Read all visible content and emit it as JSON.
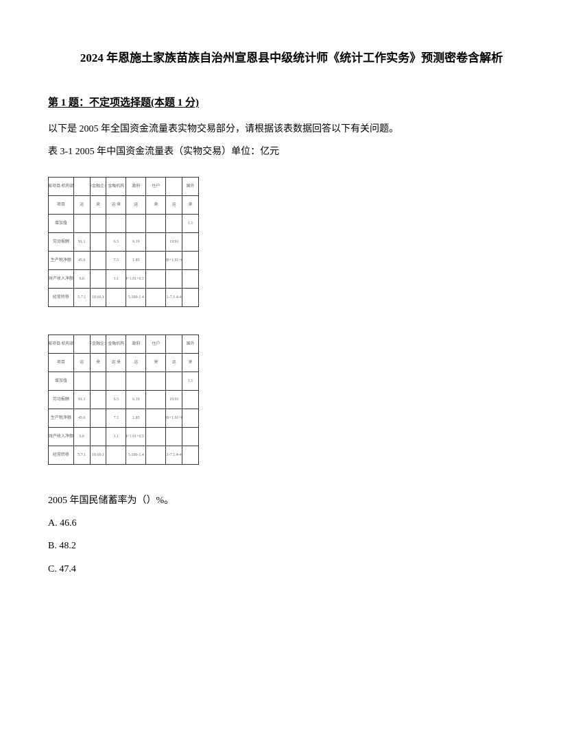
{
  "title": "2024 年恩施土家族苗族自治州宣恩县中级统计师《统计工作实务》预测密卷含解析",
  "question": {
    "header": "第 1 题：不定项选择题(本题 1 分)",
    "intro": "以下是 2005 年全国资金流量表实物交易部分，请根据该表数据回答以下有关问题。",
    "sub": "表 3-1  2005 年中国资金流量表（实物交易）单位：亿元",
    "text": "2005 年国民储蓄率为（）%。",
    "options": [
      "A. 46.6",
      "B. 48.2",
      "C. 47.4"
    ]
  },
  "table": {
    "rows": [
      [
        "交易项目/机构部门",
        "",
        "非金融企业",
        "金融机构",
        "政府",
        "住户",
        "",
        "国外"
      ],
      [
        "项目",
        "运",
        "来",
        "运  来",
        "运",
        "来",
        "运",
        "来",
        "运"
      ],
      [
        "增加值",
        "",
        "",
        "",
        "",
        "",
        "",
        "1.1"
      ],
      [
        "劳动报酬",
        "91.1",
        "",
        "6.5",
        "6.19",
        "",
        "19.91",
        "",
        ""
      ],
      [
        "生产税净额",
        "45.6",
        "",
        "7.5",
        "1.85",
        "",
        "1.89+1.91+6.5",
        "",
        ""
      ],
      [
        "财产收入净额",
        "6.6",
        "",
        "1.1",
        "1.4+1.91+0.5 1.8",
        "",
        "",
        "",
        ""
      ],
      [
        "经常转移",
        "5.7.1",
        "10.60.1",
        "",
        "5.100-1.4",
        "",
        "18.1-7.1.4-40.8",
        "",
        "1.11"
      ]
    ],
    "colors": {
      "border": "#333333",
      "text": "#666666",
      "bg": "#ffffff"
    },
    "fontsize": 6
  }
}
